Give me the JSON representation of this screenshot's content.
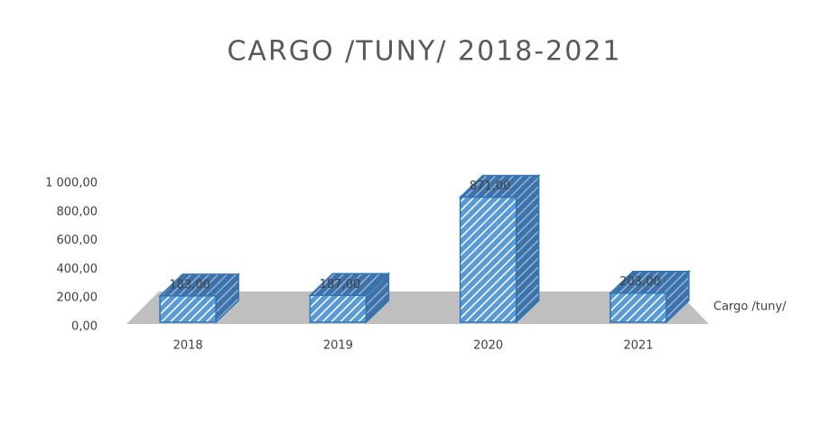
{
  "chart_data": {
    "type": "bar",
    "title": "CARGO /TUNY/ 2018-2021",
    "categories": [
      "2018",
      "2019",
      "2020",
      "2021"
    ],
    "series": [
      {
        "name": "Cargo /tuny/",
        "color": "#5b9bd5",
        "values": [
          183,
          187,
          871,
          203
        ],
        "value_labels": [
          "183,00",
          "187,00",
          "871,00",
          "203,00"
        ]
      }
    ],
    "ylim": [
      0,
      1000
    ],
    "yticks": [
      {
        "value": 0,
        "label": "0,00"
      },
      {
        "value": 200,
        "label": "200,00"
      },
      {
        "value": 400,
        "label": "400,00"
      },
      {
        "value": 600,
        "label": "600,00"
      },
      {
        "value": 800,
        "label": "800,00"
      },
      {
        "value": 1000,
        "label": "1 000,00"
      }
    ]
  }
}
